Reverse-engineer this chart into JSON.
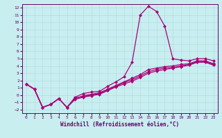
{
  "title": "",
  "xlabel": "Windchill (Refroidissement éolien,°C)",
  "ylabel": "",
  "background_color": "#c8eef0",
  "line_color": "#aa0077",
  "grid_color": "#b0dde0",
  "xlim": [
    -0.5,
    23.5
  ],
  "ylim": [
    -2.5,
    12.5
  ],
  "xticks": [
    0,
    1,
    2,
    3,
    4,
    5,
    6,
    7,
    8,
    9,
    10,
    11,
    12,
    13,
    14,
    15,
    16,
    17,
    18,
    19,
    20,
    21,
    22,
    23
  ],
  "yticks": [
    -2,
    -1,
    0,
    1,
    2,
    3,
    4,
    5,
    6,
    7,
    8,
    9,
    10,
    11,
    12
  ],
  "curves": [
    {
      "x": [
        0,
        1,
        2,
        3,
        4,
        5,
        6,
        7,
        8,
        9,
        10,
        11,
        12,
        13,
        14,
        15,
        16,
        17,
        18,
        19,
        20,
        21,
        22,
        23
      ],
      "y": [
        1.5,
        0.8,
        -1.7,
        -1.3,
        -0.5,
        -1.7,
        -0.3,
        0.2,
        0.4,
        0.5,
        1.2,
        1.8,
        2.5,
        4.5,
        11.0,
        12.2,
        11.5,
        9.5,
        5.0,
        4.8,
        4.7,
        5.0,
        5.0,
        4.7
      ],
      "marker": "D",
      "markersize": 2,
      "linewidth": 0.9
    },
    {
      "x": [
        0,
        1,
        2,
        3,
        4,
        5,
        6,
        7,
        8,
        9,
        10,
        11,
        12,
        13,
        14,
        15,
        16,
        17,
        18,
        19,
        20,
        21,
        22,
        23
      ],
      "y": [
        1.5,
        0.8,
        -1.7,
        -1.3,
        -0.5,
        -1.7,
        -0.5,
        -0.1,
        0.1,
        0.3,
        0.8,
        1.3,
        1.8,
        2.3,
        2.8,
        3.5,
        3.7,
        3.9,
        4.0,
        4.2,
        4.3,
        4.7,
        4.7,
        4.3
      ],
      "marker": "D",
      "markersize": 2,
      "linewidth": 0.9
    },
    {
      "x": [
        0,
        1,
        2,
        3,
        4,
        5,
        6,
        7,
        8,
        9,
        10,
        11,
        12,
        13,
        14,
        15,
        16,
        17,
        18,
        19,
        20,
        21,
        22,
        23
      ],
      "y": [
        1.5,
        0.8,
        -1.7,
        -1.3,
        -0.5,
        -1.7,
        -0.6,
        -0.3,
        -0.1,
        0.1,
        0.6,
        1.1,
        1.5,
        1.9,
        2.4,
        3.0,
        3.3,
        3.5,
        3.7,
        3.9,
        4.1,
        4.5,
        4.5,
        4.1
      ],
      "marker": "D",
      "markersize": 2,
      "linewidth": 0.9
    },
    {
      "x": [
        0,
        1,
        2,
        3,
        4,
        5,
        6,
        7,
        8,
        9,
        10,
        11,
        12,
        13,
        14,
        15,
        16,
        17,
        18,
        19,
        20,
        21,
        22,
        23
      ],
      "y": [
        1.5,
        0.8,
        -1.7,
        -1.3,
        -0.5,
        -1.7,
        -0.4,
        -0.2,
        0.0,
        0.2,
        0.7,
        1.2,
        1.7,
        2.1,
        2.6,
        3.2,
        3.5,
        3.7,
        3.8,
        4.0,
        4.2,
        4.6,
        4.6,
        4.2
      ],
      "marker": "D",
      "markersize": 2,
      "linewidth": 0.9
    }
  ],
  "font_color": "#660066",
  "tick_fontsize": 4.5,
  "label_fontsize": 5.5
}
